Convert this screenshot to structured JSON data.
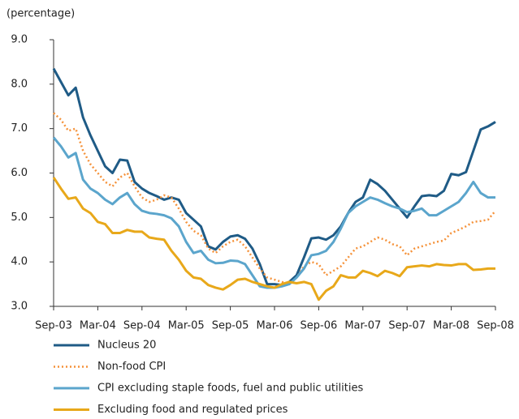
{
  "chart_data": {
    "type": "line",
    "y_axis_label": "(percentage)",
    "categories": [
      "Sep-03",
      null,
      null,
      null,
      null,
      null,
      "Mar-04",
      null,
      null,
      null,
      null,
      null,
      "Sep-04",
      null,
      null,
      null,
      null,
      null,
      "Mar-05",
      null,
      null,
      null,
      null,
      null,
      "Sep-05",
      null,
      null,
      null,
      null,
      null,
      "Mar-06",
      null,
      null,
      null,
      null,
      null,
      "Sep-06",
      null,
      null,
      null,
      null,
      null,
      "Mar-07",
      null,
      null,
      null,
      null,
      null,
      "Sep-07",
      null,
      null,
      null,
      null,
      null,
      "Mar-08",
      null,
      null,
      null,
      null,
      null,
      "Sep-08"
    ],
    "ylim": [
      3,
      9
    ],
    "yticks": [
      {
        "value": 3,
        "label": "3.0"
      },
      {
        "value": 4,
        "label": "4.0"
      },
      {
        "value": 5,
        "label": "5.0"
      },
      {
        "value": 6,
        "label": "6.0"
      },
      {
        "value": 7,
        "label": "7.0"
      },
      {
        "value": 8,
        "label": "8.0"
      },
      {
        "value": 9,
        "label": "9.0"
      }
    ],
    "series": [
      {
        "name": "Nucleus 20",
        "color": "#1f5b86",
        "style": "solid",
        "values": [
          8.35,
          8.05,
          7.75,
          7.92,
          7.25,
          6.85,
          6.5,
          6.15,
          6.0,
          6.3,
          6.28,
          5.8,
          5.65,
          5.55,
          5.48,
          5.4,
          5.45,
          5.4,
          5.1,
          4.95,
          4.8,
          4.35,
          4.28,
          4.45,
          4.57,
          4.6,
          4.52,
          4.3,
          3.95,
          3.5,
          3.5,
          3.48,
          3.55,
          3.7,
          4.1,
          4.53,
          4.55,
          4.5,
          4.6,
          4.8,
          5.1,
          5.35,
          5.45,
          5.85,
          5.75,
          5.6,
          5.4,
          5.2,
          5.0,
          5.25,
          5.48,
          5.5,
          5.48,
          5.6,
          5.98,
          5.95,
          6.02,
          6.5,
          6.98,
          7.05,
          7.15
        ]
      },
      {
        "name": "Non-food CPI",
        "color": "#f5923a",
        "style": "dotted",
        "values": [
          7.35,
          7.2,
          6.95,
          7.0,
          6.5,
          6.2,
          6.0,
          5.8,
          5.7,
          5.9,
          6.0,
          5.7,
          5.45,
          5.35,
          5.4,
          5.5,
          5.45,
          5.2,
          4.9,
          4.7,
          4.6,
          4.3,
          4.2,
          4.35,
          4.45,
          4.5,
          4.35,
          4.1,
          3.85,
          3.65,
          3.6,
          3.55,
          3.5,
          3.65,
          3.9,
          4.0,
          3.95,
          3.7,
          3.8,
          3.9,
          4.1,
          4.3,
          4.35,
          4.45,
          4.55,
          4.5,
          4.4,
          4.35,
          4.15,
          4.3,
          4.35,
          4.4,
          4.45,
          4.48,
          4.65,
          4.72,
          4.8,
          4.9,
          4.92,
          4.95,
          5.15
        ]
      },
      {
        "name": "CPI excluding staple foods, fuel and public utilities",
        "color": "#5ba5cc",
        "style": "solid",
        "values": [
          6.8,
          6.6,
          6.35,
          6.45,
          5.85,
          5.65,
          5.55,
          5.4,
          5.3,
          5.45,
          5.55,
          5.3,
          5.15,
          5.1,
          5.08,
          5.05,
          4.98,
          4.8,
          4.45,
          4.2,
          4.25,
          4.05,
          3.97,
          3.98,
          4.03,
          4.02,
          3.95,
          3.7,
          3.45,
          3.42,
          3.42,
          3.45,
          3.5,
          3.65,
          3.85,
          4.15,
          4.18,
          4.25,
          4.45,
          4.75,
          5.1,
          5.25,
          5.35,
          5.45,
          5.4,
          5.32,
          5.25,
          5.2,
          5.12,
          5.15,
          5.2,
          5.05,
          5.05,
          5.15,
          5.25,
          5.35,
          5.55,
          5.8,
          5.55,
          5.45,
          5.45
        ]
      },
      {
        "name": "Excluding food and regulated prices",
        "color": "#e8a81a",
        "style": "solid",
        "values": [
          5.9,
          5.65,
          5.42,
          5.45,
          5.2,
          5.1,
          4.9,
          4.85,
          4.65,
          4.65,
          4.72,
          4.68,
          4.68,
          4.55,
          4.52,
          4.5,
          4.25,
          4.05,
          3.8,
          3.65,
          3.62,
          3.48,
          3.42,
          3.38,
          3.48,
          3.6,
          3.62,
          3.55,
          3.5,
          3.45,
          3.42,
          3.5,
          3.55,
          3.52,
          3.55,
          3.5,
          3.15,
          3.35,
          3.45,
          3.7,
          3.65,
          3.65,
          3.8,
          3.75,
          3.68,
          3.8,
          3.75,
          3.68,
          3.88,
          3.9,
          3.92,
          3.9,
          3.95,
          3.93,
          3.92,
          3.95,
          3.95,
          3.82,
          3.83,
          3.85,
          3.85
        ]
      }
    ],
    "grid": false,
    "legend": "bottom"
  }
}
